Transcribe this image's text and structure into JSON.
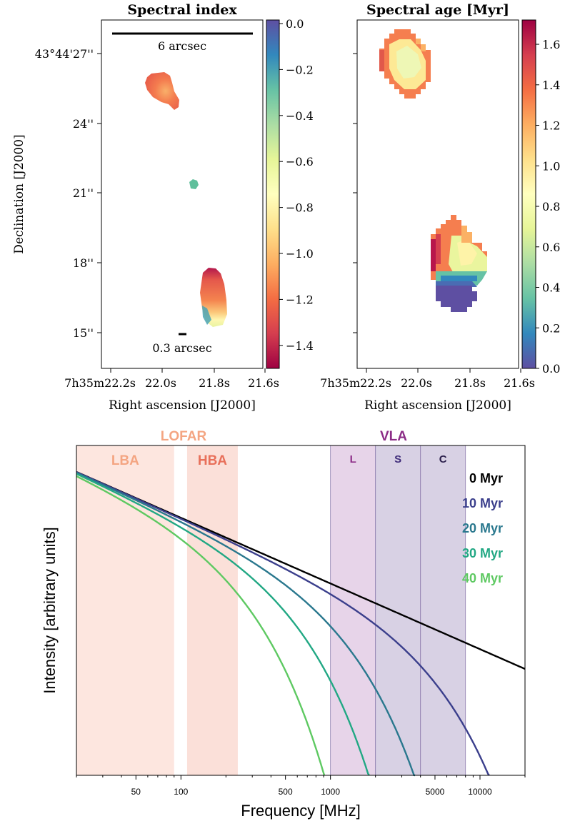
{
  "chart_data": [
    {
      "type": "heatmap",
      "title": "Spectral index",
      "xlabel": "Right ascension [J2000]",
      "ylabel": "Declination [J2000]",
      "x_ticks": [
        {
          "sup": "h",
          "sup2": "m",
          "text": "7",
          "mid": "35",
          "tail": "22.2",
          "tailsup": "s"
        },
        {
          "text": "22.0",
          "tailsup": "s"
        },
        {
          "text": "21.8",
          "tailsup": "s"
        },
        {
          "text": "21.6",
          "tailsup": "s"
        }
      ],
      "x_tick_labels": [
        "7h35m22.2s",
        "22.0s",
        "21.8s",
        "21.6s"
      ],
      "y_tick_labels": [
        "43°44'27''",
        "24''",
        "21''",
        "18''",
        "15''"
      ],
      "colorbar_ticks": [
        "0.0",
        "−0.2",
        "−0.4",
        "−0.6",
        "−0.8",
        "−1.0",
        "−1.2",
        "−1.4"
      ],
      "colorbar_values": [
        0.0,
        -0.2,
        -0.4,
        -0.6,
        -0.8,
        -1.0,
        -1.2,
        -1.4
      ],
      "colorbar_range": [
        -1.5,
        0.0
      ],
      "colormap": "Spectral",
      "annotations": [
        "6 arcsec",
        "0.3 arcsec"
      ],
      "regions": [
        {
          "ra_s": 21.98,
          "dec_arcsec": 25.3,
          "index": -1.25
        },
        {
          "ra_s": 21.88,
          "dec_arcsec": 21.3,
          "index": -0.45
        },
        {
          "ra_s": 21.8,
          "dec_arcsec": 16.5,
          "index": -1.2
        }
      ]
    },
    {
      "type": "heatmap",
      "title": "Spectral age [Myr]",
      "xlabel": "Right ascension [J2000]",
      "x_tick_labels": [
        "7h35m22.2s",
        "22.0s",
        "21.8s",
        "21.6s"
      ],
      "colorbar_ticks": [
        "0.0",
        "0.2",
        "0.4",
        "0.6",
        "0.8",
        "1.0",
        "1.2",
        "1.4",
        "1.6"
      ],
      "colorbar_values": [
        0.0,
        0.2,
        0.4,
        0.6,
        0.8,
        1.0,
        1.2,
        1.4,
        1.6
      ],
      "colorbar_range": [
        0.0,
        1.72
      ],
      "colormap": "Spectral_r",
      "regions": [
        {
          "ra_s": 22.04,
          "dec_arcsec": 27.0,
          "age_myr": 0.9
        },
        {
          "ra_s": 21.84,
          "dec_arcsec": 17.5,
          "age_myr": 0.7
        },
        {
          "ra_s": 21.84,
          "dec_arcsec": 15.5,
          "age_myr": 0.0
        }
      ]
    },
    {
      "type": "line",
      "xlabel": "Frequency [MHz]",
      "ylabel": "Intensity [arbitrary units]",
      "x_scale": "log",
      "xlim": [
        20,
        20000
      ],
      "x_tick_labels": [
        "50",
        "100",
        "500",
        "1000",
        "5000",
        "10000"
      ],
      "x_tick_values": [
        50,
        100,
        500,
        1000,
        5000,
        10000
      ],
      "bands": [
        {
          "group": "LOFAR",
          "name": "LBA",
          "range": [
            20,
            90
          ],
          "color": "#f9b29a"
        },
        {
          "group": "LOFAR",
          "name": "HBA",
          "range": [
            110,
            240
          ],
          "color": "#f4a08a"
        },
        {
          "group": "VLA",
          "name": "L",
          "range": [
            1000,
            2000
          ],
          "color": "#c9a0cf"
        },
        {
          "group": "VLA",
          "name": "S",
          "range": [
            2000,
            4000
          ],
          "color": "#a898c4"
        },
        {
          "group": "VLA",
          "name": "C",
          "range": [
            4000,
            8000
          ],
          "color": "#a898c4"
        }
      ],
      "group_labels": [
        {
          "text": "LOFAR",
          "color": "#f4a582"
        },
        {
          "text": "VLA",
          "color": "#8c2d87"
        }
      ],
      "series": [
        {
          "name": "0 Myr",
          "color": "#000000",
          "break_mhz": null
        },
        {
          "name": "10 Myr",
          "color": "#3b3f8c",
          "break_mhz": 20000
        },
        {
          "name": "20 Myr",
          "color": "#2a788e",
          "break_mhz": 5000
        },
        {
          "name": "30 Myr",
          "color": "#22a884",
          "break_mhz": 2200
        },
        {
          "name": "40 Myr",
          "color": "#5ec962",
          "break_mhz": 1000
        }
      ]
    }
  ]
}
